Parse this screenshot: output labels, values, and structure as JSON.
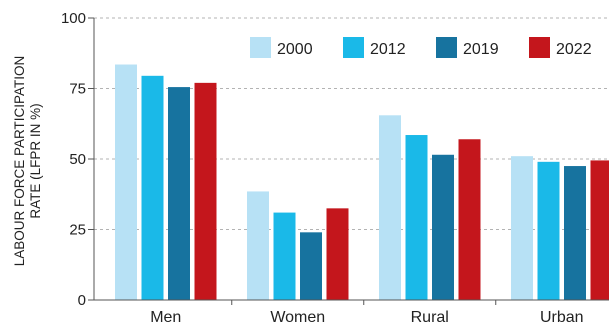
{
  "chart_data": {
    "type": "bar",
    "title": "",
    "ylabel_line1": "LABOUR FORCE PARTICIPATION",
    "ylabel_line2": "RATE (LFPR IN %)",
    "xlabel": "",
    "ylim": [
      0,
      100
    ],
    "yticks": [
      0,
      25,
      50,
      75,
      100
    ],
    "grid": "horizontal dashed",
    "legend_position": "top-right",
    "categories": [
      "Men",
      "Women",
      "Rural",
      "Urban"
    ],
    "series": [
      {
        "name": "2000",
        "color": "#b7e1f5",
        "values": [
          83.5,
          38.5,
          65.5,
          51.0
        ]
      },
      {
        "name": "2012",
        "color": "#1ab9e8",
        "values": [
          79.5,
          31.0,
          58.5,
          49.0
        ]
      },
      {
        "name": "2019",
        "color": "#17739f",
        "values": [
          75.5,
          24.0,
          51.5,
          47.5
        ]
      },
      {
        "name": "2022",
        "color": "#c4161c",
        "values": [
          77.0,
          32.5,
          57.0,
          49.5
        ]
      }
    ]
  }
}
